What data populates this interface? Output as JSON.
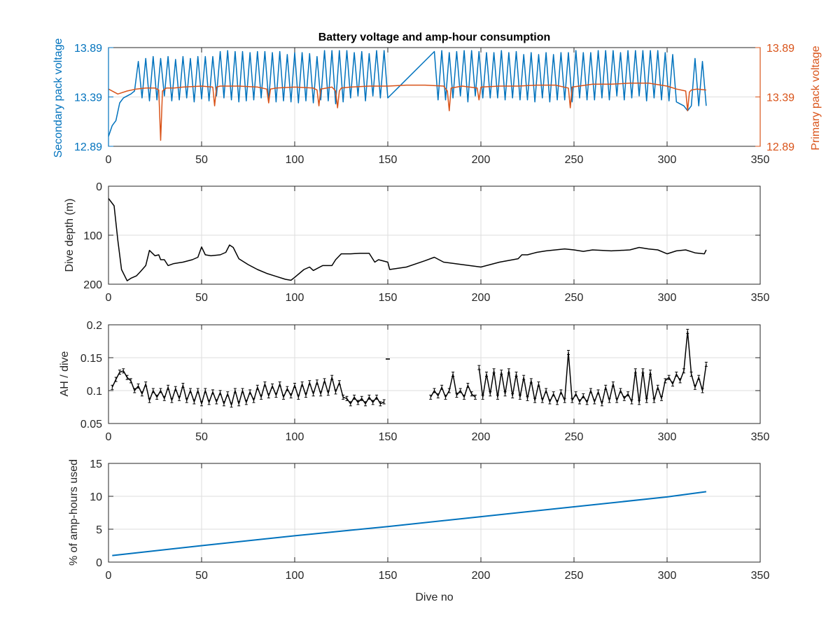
{
  "chart_data": [
    {
      "type": "line",
      "title": "Battery voltage and amp-hour consumption",
      "xlabel": "",
      "ylabel_left": "Secondary pack voltage",
      "ylabel_right": "Primary pack voltage",
      "xlim": [
        0,
        350
      ],
      "ylim": [
        12.89,
        13.89
      ],
      "xticks": [
        "0",
        "50",
        "100",
        "150",
        "200",
        "250",
        "300",
        "350"
      ],
      "yticks_left": [
        "12.89",
        "13.39",
        "13.89"
      ],
      "yticks_right": [
        "12.89",
        "13.39",
        "13.89"
      ],
      "grid": true,
      "colors": {
        "left": "#0072bd",
        "right": "#d95319"
      },
      "series": [
        {
          "axis": "left",
          "color": "#0072bd",
          "x": [
            0,
            2,
            4,
            6,
            8,
            10,
            12,
            14,
            16,
            18,
            20,
            22,
            24,
            26,
            28,
            30,
            32,
            34,
            36,
            38,
            40,
            42,
            44,
            46,
            48,
            50,
            52,
            54,
            56,
            58,
            60,
            62,
            64,
            66,
            68,
            70,
            72,
            74,
            76,
            78,
            80,
            82,
            84,
            86,
            88,
            90,
            92,
            94,
            96,
            98,
            100,
            102,
            104,
            106,
            108,
            110,
            112,
            114,
            116,
            118,
            120,
            122,
            124,
            126,
            128,
            130,
            132,
            134,
            136,
            138,
            140,
            142,
            144,
            146,
            148,
            150,
            175,
            177,
            179,
            181,
            183,
            185,
            187,
            189,
            191,
            193,
            195,
            197,
            199,
            201,
            203,
            205,
            207,
            209,
            211,
            213,
            215,
            217,
            219,
            221,
            223,
            225,
            227,
            229,
            231,
            233,
            235,
            237,
            239,
            241,
            243,
            245,
            247,
            249,
            251,
            253,
            255,
            257,
            259,
            261,
            263,
            265,
            267,
            269,
            271,
            273,
            275,
            277,
            279,
            281,
            283,
            285,
            287,
            289,
            291,
            293,
            295,
            297,
            299,
            301,
            303,
            305,
            307,
            309,
            311,
            313,
            315,
            317,
            319,
            321
          ],
          "y": [
            12.99,
            13.1,
            13.15,
            13.33,
            13.38,
            13.4,
            13.42,
            13.45,
            13.75,
            13.38,
            13.78,
            13.35,
            13.8,
            13.36,
            13.78,
            13.4,
            13.8,
            13.35,
            13.77,
            13.36,
            13.8,
            13.38,
            13.78,
            13.34,
            13.8,
            13.37,
            13.8,
            13.35,
            13.8,
            13.4,
            13.85,
            13.38,
            13.86,
            13.36,
            13.85,
            13.34,
            13.85,
            13.35,
            13.84,
            13.36,
            13.85,
            13.38,
            13.85,
            13.35,
            13.84,
            13.34,
            13.85,
            13.35,
            13.82,
            13.34,
            13.84,
            13.33,
            13.84,
            13.35,
            13.83,
            13.33,
            13.8,
            13.36,
            13.86,
            13.35,
            13.86,
            13.32,
            13.86,
            13.34,
            13.86,
            13.38,
            13.84,
            13.4,
            13.85,
            13.35,
            13.83,
            13.4,
            13.86,
            13.38,
            13.86,
            13.38,
            13.85,
            13.36,
            13.86,
            13.36,
            13.84,
            13.38,
            13.85,
            13.4,
            13.86,
            13.34,
            13.86,
            13.4,
            13.85,
            13.38,
            13.84,
            13.38,
            13.84,
            13.38,
            13.86,
            13.36,
            13.84,
            13.38,
            13.85,
            13.36,
            13.82,
            13.36,
            13.84,
            13.34,
            13.82,
            13.38,
            13.84,
            13.34,
            13.82,
            13.36,
            13.84,
            13.36,
            13.84,
            13.34,
            13.86,
            13.38,
            13.84,
            13.36,
            13.84,
            13.36,
            13.86,
            13.38,
            13.86,
            13.36,
            13.86,
            13.4,
            13.84,
            13.36,
            13.86,
            13.38,
            13.86,
            13.4,
            13.86,
            13.35,
            13.86,
            13.38,
            13.86,
            13.36,
            13.84,
            13.35,
            13.82,
            13.34,
            13.32,
            13.3,
            13.25,
            13.3,
            13.78,
            13.3,
            13.75,
            13.3
          ]
        },
        {
          "axis": "right",
          "color": "#d95319",
          "x": [
            0,
            5,
            10,
            15,
            20,
            25,
            27,
            28,
            29,
            31,
            35,
            40,
            50,
            56,
            57,
            58,
            60,
            70,
            80,
            85,
            86,
            87,
            90,
            100,
            110,
            112,
            113,
            114,
            120,
            122,
            123,
            124,
            125,
            130,
            140,
            150,
            160,
            170,
            180,
            182,
            183,
            184,
            190,
            198,
            199,
            200,
            210,
            220,
            230,
            240,
            247,
            248,
            249,
            260,
            270,
            280,
            290,
            300,
            305,
            310,
            311,
            312,
            313,
            316,
            321
          ],
          "y": [
            13.47,
            13.42,
            13.45,
            13.47,
            13.48,
            13.48,
            13.46,
            12.95,
            13.45,
            13.48,
            13.48,
            13.49,
            13.5,
            13.49,
            13.3,
            13.49,
            13.5,
            13.5,
            13.49,
            13.47,
            13.33,
            13.47,
            13.48,
            13.49,
            13.48,
            13.46,
            13.3,
            13.47,
            13.49,
            13.45,
            13.28,
            13.45,
            13.48,
            13.49,
            13.5,
            13.5,
            13.51,
            13.51,
            13.5,
            13.45,
            13.25,
            13.48,
            13.5,
            13.48,
            13.36,
            13.49,
            13.5,
            13.5,
            13.51,
            13.51,
            13.48,
            13.28,
            13.49,
            13.52,
            13.52,
            13.53,
            13.53,
            13.5,
            13.47,
            13.45,
            13.25,
            13.44,
            13.46,
            13.47,
            13.46
          ]
        }
      ]
    },
    {
      "type": "line",
      "title": "",
      "xlabel": "",
      "ylabel": "Dive depth (m)",
      "xlim": [
        0,
        350
      ],
      "ylim": [
        0,
        200
      ],
      "y_reversed": true,
      "xticks": [
        "0",
        "50",
        "100",
        "150",
        "200",
        "250",
        "300",
        "350"
      ],
      "yticks": [
        "0",
        "100",
        "200"
      ],
      "grid": true,
      "series": [
        {
          "color": "#000000",
          "x": [
            0,
            3,
            5,
            7,
            10,
            12,
            15,
            17,
            20,
            22,
            25,
            27,
            28,
            30,
            32,
            35,
            40,
            45,
            48,
            50,
            52,
            55,
            60,
            63,
            65,
            67,
            70,
            75,
            80,
            85,
            90,
            95,
            98,
            100,
            105,
            108,
            110,
            115,
            120,
            122,
            125,
            130,
            135,
            140,
            143,
            145,
            150,
            151,
            160,
            170,
            175,
            180,
            190,
            200,
            210,
            220,
            222,
            225,
            230,
            235,
            240,
            245,
            250,
            255,
            260,
            270,
            280,
            285,
            290,
            295,
            300,
            305,
            310,
            315,
            320,
            321
          ],
          "y": [
            25,
            40,
            110,
            170,
            193,
            188,
            183,
            175,
            162,
            131,
            142,
            140,
            150,
            150,
            162,
            158,
            155,
            150,
            145,
            124,
            140,
            142,
            140,
            135,
            120,
            125,
            148,
            160,
            170,
            178,
            184,
            190,
            192,
            186,
            170,
            165,
            172,
            162,
            162,
            150,
            138,
            138,
            137,
            137,
            155,
            150,
            155,
            170,
            165,
            152,
            145,
            155,
            160,
            165,
            155,
            148,
            140,
            140,
            135,
            132,
            130,
            128,
            130,
            133,
            130,
            132,
            130,
            125,
            128,
            130,
            138,
            132,
            130,
            136,
            138,
            130
          ]
        }
      ]
    },
    {
      "type": "line",
      "title": "",
      "xlabel": "",
      "ylabel": "AH / dive",
      "xlim": [
        0,
        350
      ],
      "ylim": [
        0.05,
        0.2
      ],
      "xticks": [
        "0",
        "50",
        "100",
        "150",
        "200",
        "250",
        "300",
        "350"
      ],
      "yticks": [
        "0.05",
        "0.1",
        "0.15",
        "0.2"
      ],
      "grid": true,
      "series": [
        {
          "color": "#000000",
          "x": [
            2,
            4,
            6,
            8,
            10,
            12,
            14,
            16,
            18,
            20,
            22,
            24,
            26,
            28,
            30,
            32,
            34,
            36,
            38,
            40,
            42,
            44,
            46,
            48,
            50,
            52,
            54,
            56,
            58,
            60,
            62,
            64,
            66,
            68,
            70,
            72,
            74,
            76,
            78,
            80,
            82,
            84,
            86,
            88,
            90,
            92,
            94,
            96,
            98,
            100,
            102,
            104,
            106,
            108,
            110,
            112,
            114,
            116,
            118,
            120,
            122,
            124,
            126,
            128,
            130,
            132,
            134,
            136,
            138,
            140,
            142,
            144,
            146,
            148
          ],
          "y": [
            0.105,
            0.117,
            0.128,
            0.13,
            0.12,
            0.115,
            0.1,
            0.107,
            0.095,
            0.11,
            0.085,
            0.1,
            0.09,
            0.1,
            0.088,
            0.105,
            0.085,
            0.103,
            0.088,
            0.108,
            0.085,
            0.1,
            0.083,
            0.1,
            0.08,
            0.1,
            0.082,
            0.098,
            0.083,
            0.097,
            0.08,
            0.095,
            0.078,
            0.1,
            0.08,
            0.1,
            0.082,
            0.098,
            0.085,
            0.105,
            0.09,
            0.11,
            0.092,
            0.107,
            0.093,
            0.11,
            0.09,
            0.103,
            0.092,
            0.108,
            0.09,
            0.11,
            0.093,
            0.112,
            0.095,
            0.113,
            0.095,
            0.115,
            0.096,
            0.12,
            0.098,
            0.112,
            0.09,
            0.088,
            0.08,
            0.09,
            0.082,
            0.088,
            0.08,
            0.09,
            0.082,
            0.09,
            0.08,
            0.083
          ]
        },
        {
          "color": "#000000",
          "x": [
            150
          ],
          "y": [
            0.148
          ]
        },
        {
          "color": "#000000",
          "x": [
            173,
            175,
            177,
            179,
            181,
            183,
            185,
            187,
            189,
            191,
            193,
            195,
            197
          ],
          "y": [
            0.09,
            0.1,
            0.092,
            0.105,
            0.09,
            0.1,
            0.125,
            0.093,
            0.1,
            0.09,
            0.108,
            0.095,
            0.09
          ]
        },
        {
          "color": "#000000",
          "x": [
            199,
            201,
            203,
            205,
            207,
            209,
            211,
            213,
            215,
            217,
            219,
            221,
            223,
            225,
            227,
            229,
            231,
            233,
            235,
            237,
            239,
            241,
            243,
            245,
            247,
            249,
            251,
            253,
            255,
            257,
            259,
            261,
            263,
            265,
            267,
            269,
            271,
            273,
            275,
            277,
            279,
            281,
            283,
            285,
            287,
            289,
            291,
            293,
            295,
            297,
            299,
            301,
            303,
            305,
            307,
            309,
            311,
            313,
            315,
            317,
            319,
            321
          ],
          "y": [
            0.135,
            0.09,
            0.125,
            0.095,
            0.13,
            0.09,
            0.128,
            0.095,
            0.13,
            0.092,
            0.125,
            0.09,
            0.12,
            0.088,
            0.115,
            0.085,
            0.11,
            0.085,
            0.1,
            0.083,
            0.095,
            0.082,
            0.098,
            0.085,
            0.158,
            0.085,
            0.095,
            0.083,
            0.092,
            0.082,
            0.1,
            0.083,
            0.098,
            0.08,
            0.105,
            0.085,
            0.11,
            0.085,
            0.1,
            0.088,
            0.095,
            0.083,
            0.13,
            0.082,
            0.13,
            0.085,
            0.128,
            0.085,
            0.105,
            0.088,
            0.115,
            0.12,
            0.11,
            0.125,
            0.115,
            0.13,
            0.19,
            0.125,
            0.105,
            0.12,
            0.1,
            0.14
          ]
        }
      ]
    },
    {
      "type": "line",
      "title": "",
      "xlabel": "Dive no",
      "ylabel": "% of amp-hours used",
      "xlim": [
        0,
        350
      ],
      "ylim": [
        0,
        15
      ],
      "xticks": [
        "0",
        "50",
        "100",
        "150",
        "200",
        "250",
        "300",
        "350"
      ],
      "yticks": [
        "0",
        "5",
        "10",
        "15"
      ],
      "grid": true,
      "series": [
        {
          "color": "#0072bd",
          "x": [
            2,
            50,
            100,
            150,
            200,
            250,
            300,
            321
          ],
          "y": [
            1.0,
            2.5,
            4.0,
            5.4,
            6.9,
            8.4,
            9.9,
            10.7
          ]
        }
      ]
    }
  ]
}
